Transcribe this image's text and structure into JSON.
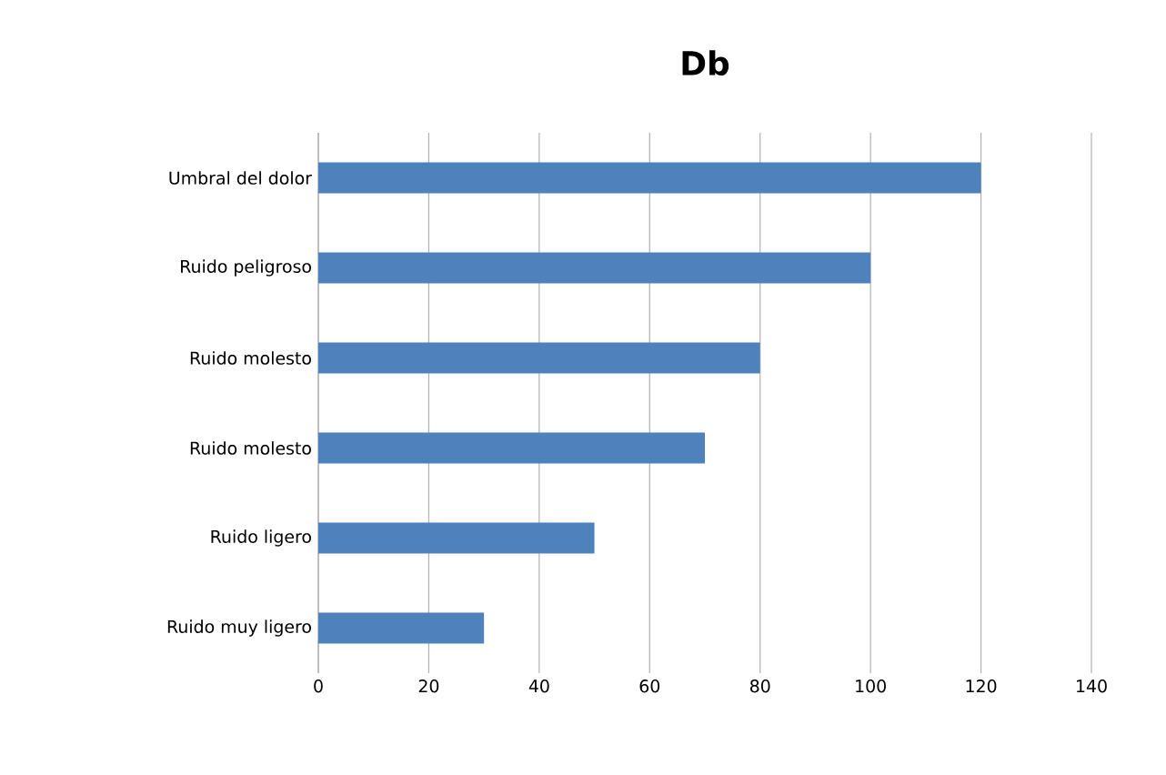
{
  "chart_data": {
    "type": "bar",
    "orientation": "horizontal",
    "title": "Db",
    "categories": [
      "Umbral del dolor",
      "Ruido peligroso",
      "Ruido molesto",
      "Ruido molesto",
      "Ruido ligero",
      "Ruido muy ligero"
    ],
    "values": [
      120,
      100,
      80,
      70,
      50,
      30
    ],
    "color": "#4f81bd",
    "xlim": [
      0,
      140
    ],
    "xticks": [
      0,
      20,
      40,
      60,
      80,
      100,
      120,
      140
    ],
    "grid": "x"
  }
}
